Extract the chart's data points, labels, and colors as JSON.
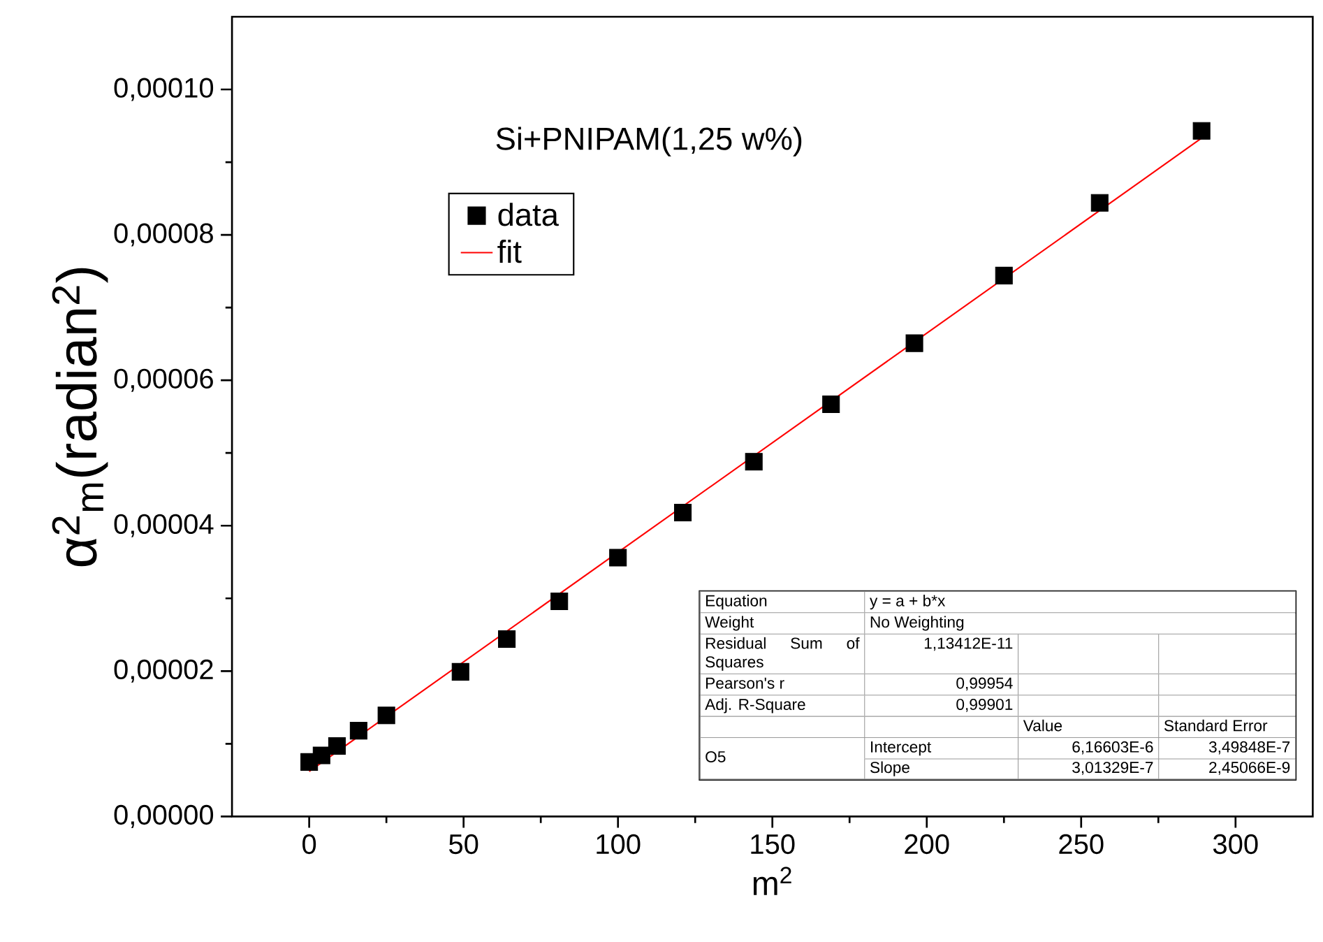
{
  "chart_data": {
    "type": "scatter",
    "title": "Si+PNIPAM(1,25 w%)",
    "xlabel": "m$^{2}$",
    "ylabel": "α$^{2}$$_{m}$(radian$^{2}$)",
    "xlim": [
      -25,
      325
    ],
    "xticks": [
      0,
      50,
      100,
      150,
      200,
      250,
      300
    ],
    "ylim": [
      0,
      0.00011
    ],
    "yticks": [
      {
        "value": 0,
        "label": "0,00000"
      },
      {
        "value": 2e-05,
        "label": "0,00002"
      },
      {
        "value": 4e-05,
        "label": "0,00004"
      },
      {
        "value": 6e-05,
        "label": "0,00006"
      },
      {
        "value": 8e-05,
        "label": "0,00008"
      },
      {
        "value": 0.0001,
        "label": "0,00010"
      }
    ],
    "legend": "top left",
    "series": [
      {
        "name": "data",
        "color": "#000000",
        "marker": "square",
        "x": [
          0,
          4,
          9,
          16,
          25,
          49,
          64,
          81,
          100,
          121,
          144,
          169,
          196,
          225,
          256,
          289
        ],
        "values": [
          7.5e-06,
          8.4e-06,
          9.7e-06,
          1.18e-05,
          1.39e-05,
          1.99e-05,
          2.44e-05,
          2.96e-05,
          3.56e-05,
          4.18e-05,
          4.88e-05,
          5.67e-05,
          6.51e-05,
          7.44e-05,
          8.44e-05,
          9.43e-05
        ]
      },
      {
        "name": "fit",
        "type": "line",
        "color": "#ff0000",
        "x": [
          0,
          289
        ],
        "values": [
          6.2e-06,
          9.33e-05
        ]
      }
    ],
    "annotations": [
      "Equation",
      "y = a + b*x",
      "Weight",
      "No Weighting",
      "Residual Sum of Squares",
      "1,13412E-11",
      "Pearson's r",
      "0,99954",
      "Adj. R-Square",
      "0,99901",
      "Value",
      "Standard Error",
      "O5",
      "Intercept",
      "6,16603E-6",
      "3,49848E-7",
      "Slope",
      "3,01329E-7",
      "2,45066E-9"
    ]
  }
}
